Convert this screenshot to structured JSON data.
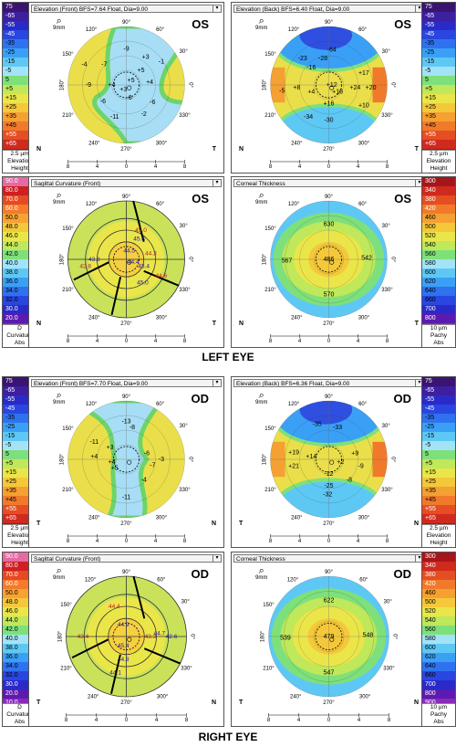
{
  "headings": {
    "left_eye": "LEFT EYE",
    "right_eye": "RIGHT EYE"
  },
  "scales": {
    "elevation": {
      "values": [
        "75",
        "-65",
        "-55",
        "-45",
        "-35",
        "-25",
        "-15",
        "-5",
        "5",
        "+5",
        "+15",
        "+25",
        "+35",
        "+45",
        "+55",
        "+65",
        "+75"
      ],
      "colors": [
        "#3a1470",
        "#3d1fa0",
        "#2a2ac8",
        "#2946e0",
        "#2f72f0",
        "#3aa0f6",
        "#5ec8f5",
        "#a3e3f7",
        "#7ee07a",
        "#bfe85a",
        "#eae64a",
        "#f5c83a",
        "#f5a032",
        "#f07a2a",
        "#e44e22",
        "#cf2a1e",
        "#a5161a"
      ],
      "unit": "2.5 µm",
      "name": "Elevation",
      "mode": "Height"
    },
    "curvature": {
      "values": [
        "90.0",
        "80.0",
        "70.0",
        "60.0",
        "50.0",
        "48.0",
        "46.0",
        "44.0",
        "42.0",
        "40.0",
        "38.0",
        "36.0",
        "34.0",
        "32.0",
        "30.0",
        "20.0",
        "10.0"
      ],
      "colors": [
        "#e46aa4",
        "#cf1f20",
        "#e64a22",
        "#f57a2a",
        "#f7a232",
        "#f5c83a",
        "#eae64a",
        "#bfe85a",
        "#7ee07a",
        "#a3e3f7",
        "#5ec8f5",
        "#3aa0f6",
        "#2f72f0",
        "#2946e0",
        "#2a2ac8",
        "#5d1ab0",
        "#8a2bb8"
      ],
      "unit": "D",
      "name": "Curvature",
      "mode": "Abs"
    },
    "pachy": {
      "values": [
        "300",
        "340",
        "380",
        "420",
        "460",
        "500",
        "520",
        "540",
        "560",
        "580",
        "600",
        "620",
        "640",
        "660",
        "700",
        "800",
        "900"
      ],
      "colors": [
        "#a5161a",
        "#cf2a1e",
        "#e44e22",
        "#f07a2a",
        "#f5a032",
        "#f5c83a",
        "#eae64a",
        "#bfe85a",
        "#7ee07a",
        "#a3e3f7",
        "#5ec8f5",
        "#3aa0f6",
        "#2f72f0",
        "#2946e0",
        "#2a2ac8",
        "#5d1ab0",
        "#8a2bb8"
      ],
      "unit": "10 µm",
      "name": "Pachy",
      "mode": "Abs"
    }
  },
  "maps": {
    "os_front_elev": {
      "title": "Elevation (Front) BFS=7.64 Float, Dia=9.00",
      "eye": "OS",
      "values": [
        "-9",
        "+3",
        "-7",
        "+5",
        "+5",
        "+4",
        "+3",
        "+4",
        "-9",
        "-6",
        "-6",
        "-6",
        "-11",
        "-2",
        "-4",
        "-1"
      ]
    },
    "os_back_elev": {
      "title": "Elevation (Back) BFS=6.40 Float, Dia=9.00",
      "eye": "OS",
      "values": [
        "-64",
        "-23",
        "-28",
        "-16",
        "+8",
        "+17",
        "+12",
        "+24",
        "+20",
        "+18",
        "+16",
        "+10",
        "-34",
        "-30",
        "+4",
        "-5"
      ]
    },
    "os_sagittal": {
      "title": "Sagittal Curvature (Front)",
      "eye": "OS",
      "values": [
        "45.0",
        "45.6",
        "44.5",
        "44.3",
        "43.4",
        "44.4",
        "42.8",
        "43.8",
        "45.0",
        "44.6"
      ]
    },
    "os_thickness": {
      "title": "Corneal Thickness",
      "eye": "OS",
      "values": [
        "630",
        "567",
        "486",
        "542",
        "570"
      ]
    },
    "od_front_elev": {
      "title": "Elevation (Front) BFS=7.70 Float, Dia=9.00",
      "eye": "OD",
      "values": [
        "-13",
        "-8",
        "-11",
        "+3",
        "+4",
        "+4",
        "+5",
        "-6",
        "-7",
        "-3",
        "-4",
        "-11"
      ]
    },
    "od_back_elev": {
      "title": "Elevation (Back) BFS=6.36 Float, Dia=9.00",
      "eye": "OD",
      "values": [
        "-35",
        "-33",
        "+19",
        "+14",
        "+21",
        "+9",
        "-9",
        "+2",
        "-12",
        "-25",
        "-32",
        "-8"
      ]
    },
    "od_sagittal": {
      "title": "Sagittal Curvature (Front)",
      "eye": "OD",
      "values": [
        "44.4",
        "44.7",
        "42.6",
        "43.4",
        "44.9",
        "45.4",
        "43.3",
        "44.8",
        "44.1"
      ]
    },
    "od_thickness": {
      "title": "Corneal Thickness",
      "eye": "OD",
      "values": [
        "622",
        "539",
        "479",
        "548",
        "547"
      ]
    }
  },
  "axes": {
    "top": "90°",
    "bottom": "270°",
    "left": "180°",
    "right": "0°",
    "d60": "60°",
    "d120": "120°",
    "d150": "150°",
    "d30": "30°",
    "d210": "210°",
    "d240": "240°",
    "d300": "300°",
    "d330": "330°",
    "ticks": [
      "8",
      "4",
      "0",
      "4",
      "8"
    ]
  },
  "corners": {
    "os_left": "N",
    "os_right": "T",
    "od_left": "T",
    "od_right": "N"
  },
  "zoom": "9mm"
}
